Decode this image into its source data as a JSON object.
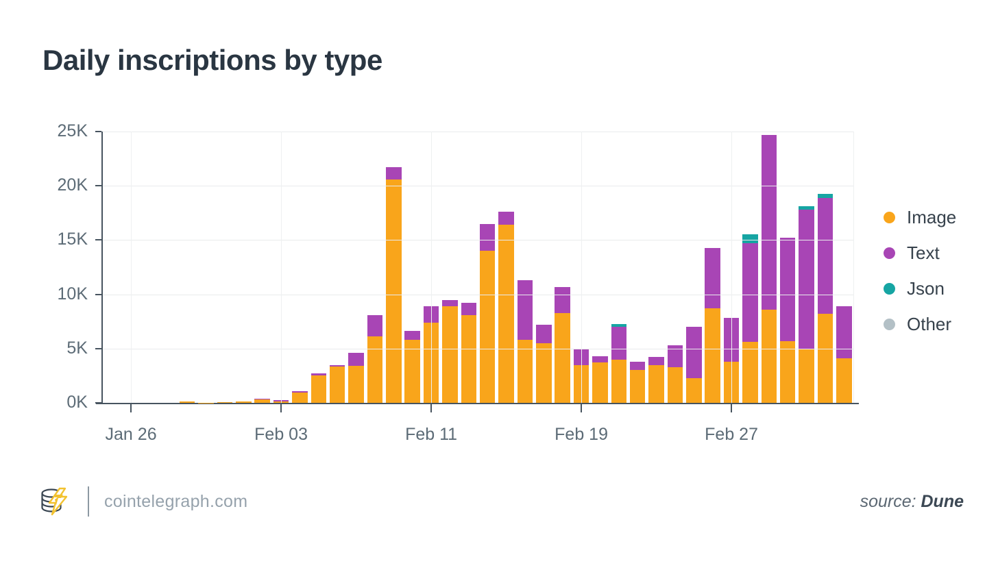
{
  "title": "Daily inscriptions by type",
  "chart_data": {
    "type": "bar",
    "stacked": true,
    "title": "Daily inscriptions by type",
    "xlabel": "",
    "ylabel": "",
    "ylim": [
      0,
      25000
    ],
    "grid": true,
    "legend_position": "right",
    "y_tick_labels": [
      "0K",
      "5K",
      "10K",
      "15K",
      "20K",
      "25K"
    ],
    "x_tick_labels": [
      "Jan 26",
      "Feb 03",
      "Feb 11",
      "Feb 19",
      "Feb 27"
    ],
    "x_tick_indices": [
      1,
      9,
      17,
      25,
      33
    ],
    "x": [
      "Jan 25",
      "Jan 26",
      "Jan 27",
      "Jan 28",
      "Jan 29",
      "Jan 30",
      "Jan 31",
      "Feb 01",
      "Feb 02",
      "Feb 03",
      "Feb 04",
      "Feb 05",
      "Feb 06",
      "Feb 07",
      "Feb 08",
      "Feb 09",
      "Feb 10",
      "Feb 11",
      "Feb 12",
      "Feb 13",
      "Feb 14",
      "Feb 15",
      "Feb 16",
      "Feb 17",
      "Feb 18",
      "Feb 19",
      "Feb 20",
      "Feb 21",
      "Feb 22",
      "Feb 23",
      "Feb 24",
      "Feb 25",
      "Feb 26",
      "Feb 27",
      "Feb 28",
      "Mar 01",
      "Mar 02",
      "Mar 03",
      "Mar 04",
      "Mar 05"
    ],
    "series": [
      {
        "name": "Image",
        "color": "#F9A51B",
        "values": [
          0,
          0,
          0,
          0,
          120,
          30,
          60,
          120,
          300,
          150,
          950,
          2550,
          3350,
          3400,
          6150,
          20600,
          5800,
          7400,
          8900,
          8100,
          14000,
          16400,
          5800,
          5500,
          8300,
          3500,
          3700,
          4000,
          3000,
          3500,
          3300,
          2300,
          8700,
          3800,
          5600,
          8600,
          5700,
          5000,
          8200,
          4100
        ]
      },
      {
        "name": "Text",
        "color": "#A845B5",
        "values": [
          0,
          0,
          0,
          0,
          0,
          0,
          0,
          20,
          50,
          80,
          100,
          150,
          150,
          1200,
          1950,
          1100,
          800,
          1500,
          600,
          1100,
          2500,
          1200,
          5500,
          1700,
          2400,
          1500,
          600,
          3000,
          800,
          700,
          2000,
          4700,
          5600,
          4000,
          9100,
          16100,
          9500,
          12800,
          10700,
          4800
        ]
      },
      {
        "name": "Json",
        "color": "#16A5A3",
        "values": [
          0,
          0,
          0,
          0,
          0,
          0,
          0,
          0,
          0,
          0,
          0,
          0,
          0,
          0,
          0,
          0,
          0,
          0,
          0,
          0,
          0,
          0,
          0,
          0,
          0,
          0,
          0,
          250,
          0,
          0,
          0,
          0,
          0,
          0,
          800,
          0,
          0,
          350,
          350,
          0
        ]
      },
      {
        "name": "Other",
        "color": "#B3C0C6",
        "values": [
          0,
          0,
          0,
          0,
          0,
          0,
          0,
          0,
          0,
          0,
          0,
          0,
          0,
          0,
          0,
          0,
          0,
          0,
          0,
          0,
          0,
          0,
          0,
          0,
          0,
          0,
          0,
          0,
          0,
          0,
          0,
          0,
          0,
          0,
          0,
          0,
          0,
          0,
          0,
          0
        ]
      }
    ]
  },
  "footer": {
    "site": "cointelegraph.com",
    "source_label": "source:",
    "source_name": "Dune"
  }
}
